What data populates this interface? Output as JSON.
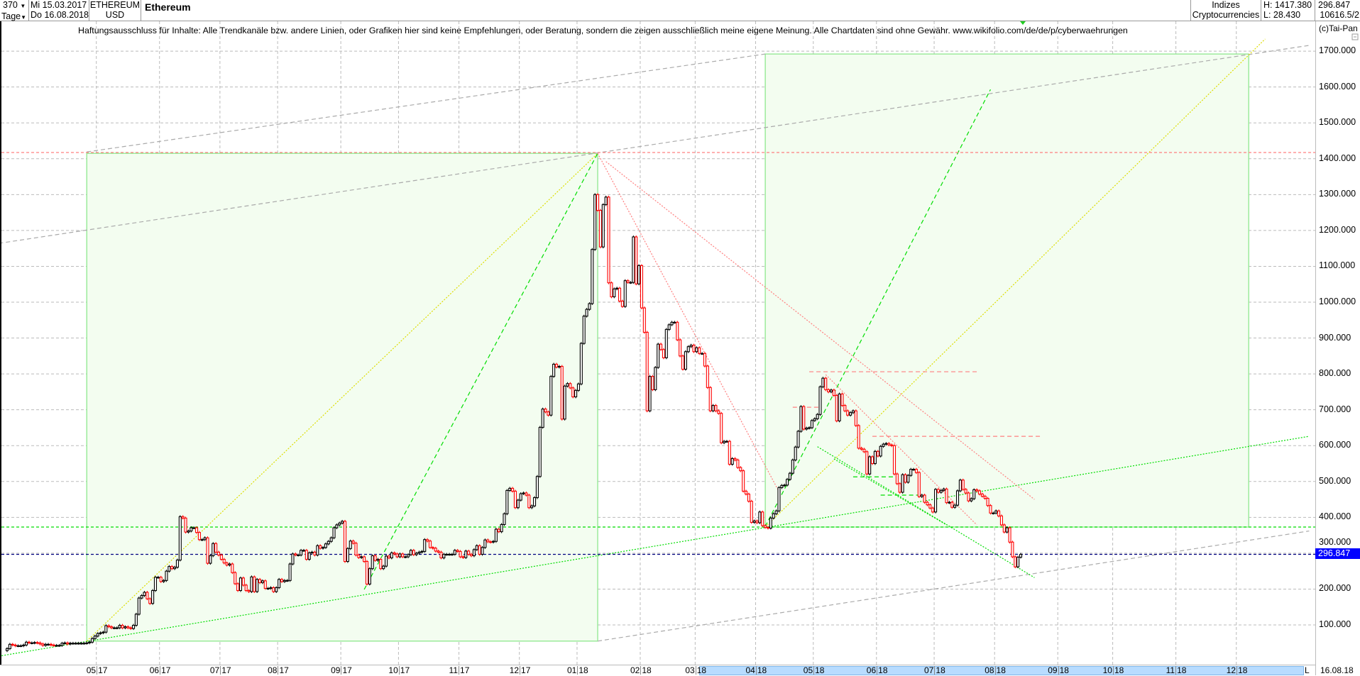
{
  "header": {
    "bars_count": "370",
    "period_unit": "Tage",
    "start_date": "Mi 15.03.2017",
    "end_date": "Do 16.08.2018",
    "symbol": "ETHEREUM",
    "currency": "USD",
    "title": "Ethereum",
    "index_group": "Indizes",
    "index_name": "Cryptocurrencies",
    "high": "H: 1417.380",
    "low": "L: 28.430",
    "last": "296.847",
    "volume": "10616.5/2"
  },
  "disclaimer": "Haftungsausschluss für Inhalte: Alle Trendkanäle bzw. andere Linien, oder Grafiken hier sind keine Empfehlungen, oder Beratung, sondern die zeigen ausschließlich meine eigene Meinung. Alle Chartdaten sind ohne Gewähr.  www.wikifolio.com/de/de/p/cyberwaehrungen",
  "copyright": "(c)Tai-Pan",
  "footer": {
    "l_button": "L",
    "last_date": "16.08.18"
  },
  "colors": {
    "up": "#000000",
    "down": "#ff0000",
    "grid": "#bbbbbb",
    "box_fill": "#f3fdf0",
    "box_stroke": "#8ee88e",
    "green": "#00dd00",
    "yellow": "#dddd00",
    "gray": "#aaaaaa",
    "red_line": "#ff8080",
    "last_price_line": "#000080",
    "last_price_tag": "#0000ff"
  },
  "chart_data": {
    "type": "candlestick",
    "title": "Ethereum",
    "interval": "daily (weekdays)",
    "first_date": "2017-03-15",
    "last_date": "2018-08-16",
    "first_open": 28.43,
    "high": 1417.38,
    "low": 28.43,
    "last": 296.847,
    "ylim": [
      0,
      1780
    ],
    "y_ticks": [
      "100.000",
      "200.000",
      "300.000",
      "400.000",
      "500.000",
      "600.000",
      "700.000",
      "800.000",
      "900.000",
      "1000.000",
      "1100.000",
      "1200.000",
      "1300.000",
      "1400.000",
      "1500.000",
      "1600.000",
      "1700.000"
    ],
    "y_tick_values": [
      100,
      200,
      300,
      400,
      500,
      600,
      700,
      800,
      900,
      1000,
      1100,
      1200,
      1300,
      1400,
      1500,
      1600,
      1700
    ],
    "x_ticks": [
      {
        "m": "05",
        "y": "17",
        "date": "2017-05-01"
      },
      {
        "m": "06",
        "y": "17",
        "date": "2017-06-01"
      },
      {
        "m": "07",
        "y": "17",
        "date": "2017-07-03"
      },
      {
        "m": "08",
        "y": "17",
        "date": "2017-08-01"
      },
      {
        "m": "09",
        "y": "17",
        "date": "2017-09-01"
      },
      {
        "m": "10",
        "y": "17",
        "date": "2017-10-02"
      },
      {
        "m": "11",
        "y": "17",
        "date": "2017-11-01"
      },
      {
        "m": "12",
        "y": "17",
        "date": "2017-12-01"
      },
      {
        "m": "01",
        "y": "18",
        "date": "2018-01-01"
      },
      {
        "m": "02",
        "y": "18",
        "date": "2018-02-01"
      },
      {
        "m": "03",
        "y": "18",
        "date": "2018-03-01"
      },
      {
        "m": "04",
        "y": "18",
        "date": "2018-04-02"
      },
      {
        "m": "05",
        "y": "18",
        "date": "2018-05-01"
      },
      {
        "m": "06",
        "y": "18",
        "date": "2018-06-01"
      },
      {
        "m": "07",
        "y": "18",
        "date": "2018-07-02"
      },
      {
        "m": "08",
        "y": "18",
        "date": "2018-08-01"
      },
      {
        "m": "09",
        "y": "18",
        "date": "2018-09-03"
      },
      {
        "m": "10",
        "y": "18",
        "date": "2018-10-01"
      },
      {
        "m": "11",
        "y": "18",
        "date": "2018-11-01"
      },
      {
        "m": "12",
        "y": "18",
        "date": "2018-12-03"
      }
    ],
    "closes": [
      34,
      46,
      44,
      42,
      42,
      42,
      44,
      52,
      50,
      50,
      51,
      50,
      47,
      43,
      46,
      46,
      44,
      43,
      43,
      43,
      49,
      50,
      47,
      49,
      49,
      49,
      49,
      49,
      49,
      50,
      52,
      62,
      69,
      76,
      78,
      80,
      98,
      95,
      92,
      92,
      92,
      99,
      92,
      95,
      92,
      90,
      99,
      130,
      175,
      182,
      191,
      173,
      160,
      196,
      233,
      233,
      221,
      224,
      250,
      263,
      257,
      261,
      281,
      402,
      398,
      359,
      362,
      371,
      371,
      358,
      338,
      338,
      343,
      272,
      293,
      327,
      303,
      295,
      283,
      273,
      267,
      270,
      246,
      215,
      196,
      231,
      211,
      196,
      193,
      234,
      193,
      227,
      218,
      223,
      202,
      202,
      204,
      193,
      204,
      227,
      221,
      224,
      224,
      270,
      298,
      295,
      295,
      308,
      308,
      283,
      301,
      303,
      295,
      321,
      314,
      316,
      326,
      333,
      343,
      371,
      379,
      384,
      389,
      277,
      313,
      334,
      328,
      295,
      288,
      290,
      277,
      214,
      257,
      293,
      280,
      283,
      257,
      264,
      292,
      287,
      301,
      298,
      290,
      298,
      290,
      290,
      296,
      308,
      296,
      300,
      303,
      305,
      338,
      334,
      316,
      314,
      306,
      303,
      287,
      297,
      297,
      297,
      297,
      308,
      305,
      290,
      288,
      306,
      297,
      293,
      310,
      321,
      297,
      316,
      337,
      332,
      331,
      333,
      367,
      360,
      380,
      410,
      475,
      481,
      473,
      427,
      448,
      466,
      468,
      462,
      427,
      432,
      455,
      514,
      651,
      702,
      694,
      685,
      793,
      827,
      819,
      821,
      674,
      766,
      773,
      761,
      736,
      754,
      772,
      885,
      961,
      980,
      996,
      1147,
      1300,
      1256,
      1154,
      1272,
      1293,
      1054,
      1015,
      1037,
      1039,
      1003,
      988,
      1060,
      1055,
      1055,
      1182,
      1051,
      1102,
      984,
      916,
      697,
      793,
      756,
      818,
      883,
      868,
      845,
      924,
      937,
      944,
      944,
      895,
      850,
      813,
      862,
      876,
      880,
      862,
      873,
      857,
      857,
      822,
      762,
      697,
      712,
      697,
      690,
      608,
      612,
      612,
      548,
      564,
      560,
      539,
      530,
      473,
      465,
      445,
      386,
      390,
      385,
      415,
      377,
      372,
      370,
      398,
      410,
      418,
      483,
      489,
      490,
      506,
      523,
      560,
      596,
      640,
      709,
      646,
      649,
      650,
      670,
      675,
      687,
      764,
      788,
      756,
      750,
      755,
      740,
      669,
      744,
      712,
      697,
      685,
      692,
      697,
      656,
      593,
      590,
      583,
      521,
      569,
      550,
      584,
      571,
      598,
      604,
      606,
      602,
      600,
      521,
      494,
      470,
      519,
      498,
      517,
      534,
      534,
      525,
      458,
      462,
      442,
      435,
      426,
      415,
      478,
      470,
      475,
      479,
      441,
      442,
      428,
      434,
      474,
      504,
      478,
      468,
      446,
      452,
      477,
      474,
      465,
      459,
      453,
      433,
      412,
      412,
      418,
      404,
      379,
      359,
      371,
      331,
      290,
      262,
      289,
      296.847
    ],
    "boxes": [
      {
        "name": "box-2017",
        "from": [
          "2017-04-25",
          55
        ],
        "to": [
          "2018-01-10",
          1415
        ]
      },
      {
        "name": "box-2018",
        "from": [
          "2018-04-05",
          373
        ],
        "to": [
          "2018-12-07",
          1692
        ]
      }
    ],
    "lines": [
      {
        "name": "gray-channel-upper",
        "color": "gray",
        "style": "dash",
        "from": [
          "2017-03-10",
          1164
        ],
        "to": [
          "2019-01-08",
          1716
        ]
      },
      {
        "name": "gray-channel-parallel",
        "color": "gray",
        "style": "dash",
        "from": [
          "2017-04-25",
          1419
        ],
        "to": [
          "2018-04-05",
          1692
        ]
      },
      {
        "name": "gray-channel-lower",
        "color": "gray",
        "style": "dash",
        "from": [
          "2018-01-10",
          55
        ],
        "to": [
          "2019-01-08",
          362
        ]
      },
      {
        "name": "green-support-long",
        "color": "green",
        "style": "dot",
        "from": [
          "2017-03-10",
          13
        ],
        "to": [
          "2019-01-08",
          626
        ]
      },
      {
        "name": "yellow-diagonal-2017",
        "color": "yellow",
        "style": "dot",
        "from": [
          "2017-04-25",
          55
        ],
        "to": [
          "2018-01-10",
          1415
        ]
      },
      {
        "name": "yellow-diagonal-2018",
        "color": "yellow",
        "style": "dot",
        "from": [
          "2018-04-05",
          373
        ],
        "to": [
          "2018-12-17",
          1734
        ]
      },
      {
        "name": "green-steep-2017",
        "color": "green",
        "style": "dash",
        "from": [
          "2017-09-13",
          199
        ],
        "to": [
          "2018-01-10",
          1415
        ]
      },
      {
        "name": "green-steep-2018",
        "color": "green",
        "style": "dash",
        "from": [
          "2018-04-05",
          375
        ],
        "to": [
          "2018-07-30",
          1593
        ]
      },
      {
        "name": "red-downtrend-a",
        "color": "red_line",
        "style": "dot",
        "from": [
          "2018-01-10",
          1415
        ],
        "to": [
          "2018-04-12",
          472
        ]
      },
      {
        "name": "red-downtrend-b",
        "color": "red_line",
        "style": "dot",
        "from": [
          "2018-01-15",
          1392
        ],
        "to": [
          "2018-08-21",
          450
        ]
      },
      {
        "name": "red-downtrend-c",
        "color": "red_line",
        "style": "dot",
        "from": [
          "2018-05-07",
          798
        ],
        "to": [
          "2018-07-23",
          379
        ]
      },
      {
        "name": "red-level-806",
        "color": "red_line",
        "style": "dash",
        "from": [
          "2018-04-27",
          806
        ],
        "to": [
          "2018-07-23",
          806
        ]
      },
      {
        "name": "red-level-707",
        "color": "red_line",
        "style": "dash",
        "from": [
          "2018-04-19",
          707
        ],
        "to": [
          "2018-05-03",
          707
        ]
      },
      {
        "name": "red-level-626",
        "color": "red_line",
        "style": "dash",
        "from": [
          "2018-05-30",
          626
        ],
        "to": [
          "2018-08-23",
          626
        ]
      },
      {
        "name": "green-down-a",
        "color": "green",
        "style": "dot",
        "from": [
          "2018-05-02",
          597
        ],
        "to": [
          "2018-08-21",
          232
        ]
      },
      {
        "name": "green-down-b",
        "color": "green",
        "style": "dot",
        "from": [
          "2018-05-10",
          563
        ],
        "to": [
          "2018-07-06",
          379
        ]
      },
      {
        "name": "green-level-513",
        "color": "green",
        "style": "dash",
        "from": [
          "2018-05-21",
          513
        ],
        "to": [
          "2018-06-12",
          513
        ]
      },
      {
        "name": "green-level-462",
        "color": "green",
        "style": "dash",
        "from": [
          "2018-06-04",
          462
        ],
        "to": [
          "2018-06-25",
          462
        ]
      }
    ],
    "hlines": [
      {
        "name": "red-level-1417",
        "color": "red_line",
        "value": 1417.38
      },
      {
        "name": "green-level-373",
        "color": "green",
        "value": 373
      },
      {
        "name": "last-price-line",
        "color": "last_price_line",
        "value": 296.847
      }
    ]
  }
}
